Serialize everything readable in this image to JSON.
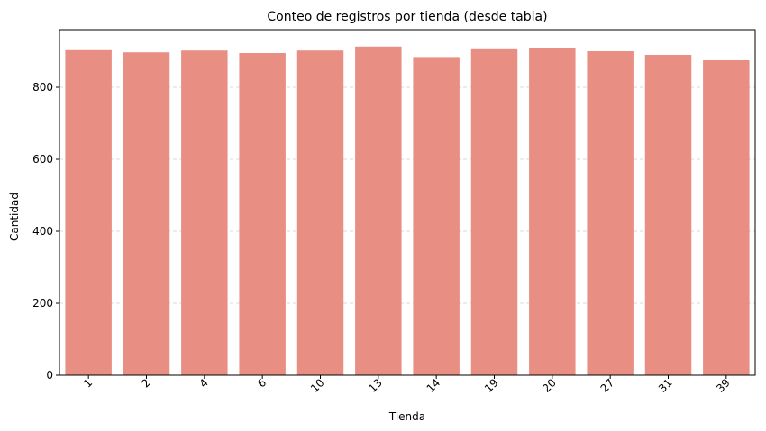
{
  "chart_data": {
    "type": "bar",
    "title": "Conteo de registros por tienda (desde tabla)",
    "xlabel": "Tienda",
    "ylabel": "Cantidad",
    "categories": [
      "1",
      "2",
      "4",
      "6",
      "10",
      "13",
      "14",
      "19",
      "20",
      "27",
      "31",
      "39"
    ],
    "values": [
      903,
      897,
      902,
      895,
      902,
      913,
      884,
      908,
      910,
      900,
      890,
      875
    ],
    "ylim": [
      0,
      960
    ],
    "yticks": [
      0,
      200,
      400,
      600,
      800
    ],
    "ytick_labels": [
      "0",
      "200",
      "400",
      "600",
      "800"
    ],
    "x_tick_rotation": "45",
    "grid": "y-dashed",
    "legend": "none",
    "bar_color": "#e98e82",
    "grid_color": "#cccccc"
  }
}
